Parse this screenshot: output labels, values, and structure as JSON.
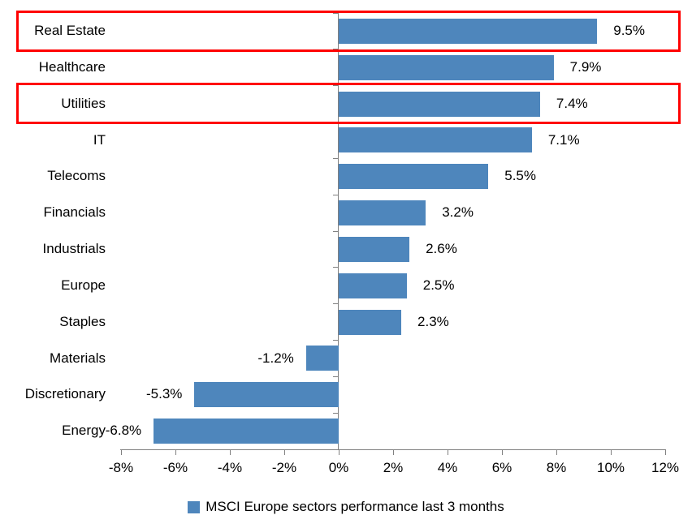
{
  "chart_data": {
    "type": "bar",
    "orientation": "horizontal",
    "title": "",
    "categories": [
      "Real Estate",
      "Healthcare",
      "Utilities",
      "IT",
      "Telecoms",
      "Financials",
      "Industrials",
      "Europe",
      "Staples",
      "Materials",
      "Discretionary",
      "Energy"
    ],
    "values": [
      9.5,
      7.9,
      7.4,
      7.1,
      5.5,
      3.2,
      2.6,
      2.5,
      2.3,
      -1.2,
      -5.3,
      -6.8
    ],
    "value_labels": [
      "9.5%",
      "7.9%",
      "7.4%",
      "7.1%",
      "5.5%",
      "3.2%",
      "2.6%",
      "2.5%",
      "2.3%",
      "-1.2%",
      "-5.3%",
      "-6.8%"
    ],
    "x_ticks": [
      {
        "label": "-8%",
        "value": -8
      },
      {
        "label": "-6%",
        "value": -6
      },
      {
        "label": "-4%",
        "value": -4
      },
      {
        "label": "-2%",
        "value": -2
      },
      {
        "label": "0%",
        "value": 0
      },
      {
        "label": "2%",
        "value": 2
      },
      {
        "label": "4%",
        "value": 4
      },
      {
        "label": "6%",
        "value": 6
      },
      {
        "label": "8%",
        "value": 8
      },
      {
        "label": "10%",
        "value": 10
      },
      {
        "label": "12%",
        "value": 12
      }
    ],
    "xlim": [
      -8,
      12
    ],
    "grid": false,
    "legend": {
      "label": "MSCI Europe sectors performance last 3 months",
      "position": "bottom"
    },
    "highlighted_categories": [
      "Real Estate",
      "Utilities"
    ],
    "colors": {
      "bar": "#4E86BC",
      "highlight_box": "#FF0000",
      "axis": "#808080",
      "text": "#000000",
      "background": "#FFFFFF"
    }
  }
}
